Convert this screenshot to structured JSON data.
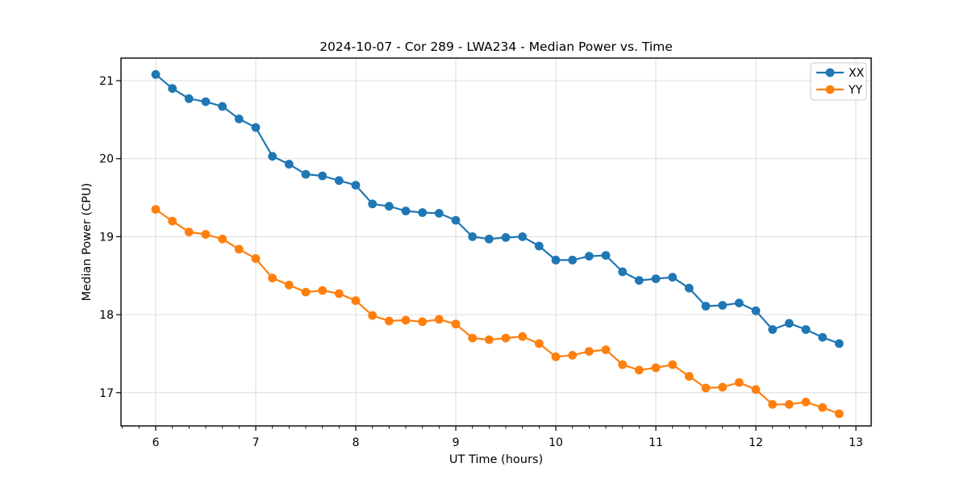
{
  "chart_data": {
    "type": "line",
    "title": "2024-10-07 - Cor 289 - LWA234 - Median Power vs. Time",
    "xlabel": "UT Time (hours)",
    "ylabel": "Median Power (CPU)",
    "x": [
      6,
      6.167,
      6.333,
      6.5,
      6.667,
      6.833,
      7,
      7.167,
      7.333,
      7.5,
      7.667,
      7.833,
      8,
      8.167,
      8.333,
      8.5,
      8.667,
      8.833,
      9,
      9.167,
      9.333,
      9.5,
      9.667,
      9.833,
      10,
      10.167,
      10.333,
      10.5,
      10.667,
      10.833,
      11,
      11.167,
      11.333,
      11.5,
      11.667,
      11.833,
      12,
      12.167,
      12.333,
      12.5,
      12.667,
      12.833
    ],
    "series": [
      {
        "name": "XX",
        "color": "#1f77b4",
        "values": [
          21.08,
          20.9,
          20.77,
          20.73,
          20.67,
          20.51,
          20.4,
          20.03,
          19.93,
          19.8,
          19.78,
          19.72,
          19.66,
          19.42,
          19.39,
          19.33,
          19.31,
          19.3,
          19.21,
          19.0,
          18.97,
          18.99,
          19.0,
          18.88,
          18.7,
          18.7,
          18.75,
          18.76,
          18.55,
          18.44,
          18.46,
          18.48,
          18.34,
          18.11,
          18.12,
          18.15,
          18.05,
          17.81,
          17.89,
          17.81,
          17.71,
          17.63
        ]
      },
      {
        "name": "YY",
        "color": "#ff7f0e",
        "values": [
          19.35,
          19.2,
          19.06,
          19.03,
          18.97,
          18.84,
          18.72,
          18.47,
          18.38,
          18.29,
          18.31,
          18.27,
          18.18,
          17.99,
          17.92,
          17.93,
          17.91,
          17.94,
          17.88,
          17.7,
          17.68,
          17.7,
          17.72,
          17.63,
          17.46,
          17.48,
          17.53,
          17.55,
          17.36,
          17.29,
          17.32,
          17.36,
          17.21,
          17.06,
          17.07,
          17.13,
          17.04,
          16.85,
          16.85,
          16.88,
          16.81,
          16.73
        ]
      }
    ],
    "xlim": [
      5.653,
      13.153
    ],
    "ylim": [
      16.574,
      21.29
    ],
    "xticks": [
      6,
      7,
      8,
      9,
      10,
      11,
      12,
      13
    ],
    "yticks": [
      17,
      18,
      19,
      20,
      21
    ],
    "x_minor_step": 0.166667,
    "grid": true,
    "legend": {
      "position": "upper right",
      "entries": [
        "XX",
        "YY"
      ]
    },
    "colors": {
      "grid": "#dcdcdc",
      "spine": "#000000",
      "tick": "#000000",
      "legend_border": "#cccccc",
      "background": "#ffffff"
    }
  }
}
